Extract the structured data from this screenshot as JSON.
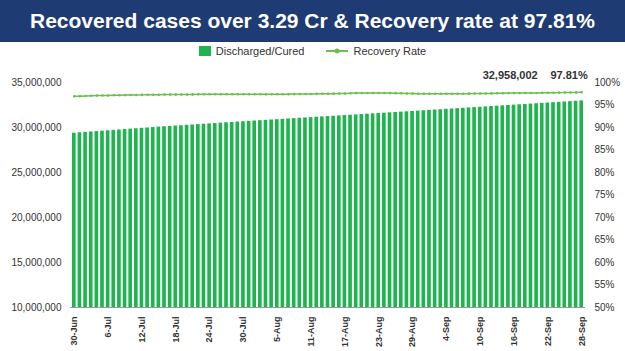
{
  "chart_data": {
    "type": "bar",
    "title": "Recovered cases over 3.29 Cr & Recovery rate at 97.81%",
    "categories": [
      "30-Jun",
      null,
      null,
      null,
      null,
      null,
      "6-Jul",
      null,
      null,
      null,
      null,
      null,
      "12-Jul",
      null,
      null,
      null,
      null,
      null,
      "18-Jul",
      null,
      null,
      null,
      null,
      null,
      "24-Jul",
      null,
      null,
      null,
      null,
      null,
      "30-Jul",
      null,
      null,
      null,
      null,
      null,
      "5-Aug",
      null,
      null,
      null,
      null,
      null,
      "11-Aug",
      null,
      null,
      null,
      null,
      null,
      "17-Aug",
      null,
      null,
      null,
      null,
      null,
      "23-Aug",
      null,
      null,
      null,
      null,
      null,
      "29-Aug",
      null,
      null,
      null,
      null,
      null,
      "4-Sep",
      null,
      null,
      null,
      null,
      null,
      "10-Sep",
      null,
      null,
      null,
      null,
      null,
      "16-Sep",
      null,
      null,
      null,
      null,
      null,
      "22-Sep",
      null,
      null,
      null,
      null,
      null,
      "28-Sep"
    ],
    "series": [
      {
        "name": "Discharged/Cured",
        "type": "bar",
        "color": "#1fb450",
        "values": [
          29366601,
          29411601,
          29456601,
          29501601,
          29546601,
          29591601,
          29636601,
          29681601,
          29726601,
          29771601,
          29816601,
          29861601,
          29906601,
          29951601,
          29996601,
          30041601,
          30081601,
          30121601,
          30161601,
          30201601,
          30241601,
          30281601,
          30321601,
          30361601,
          30401601,
          30441601,
          30481601,
          30521601,
          30561601,
          30601601,
          30641601,
          30681601,
          30719601,
          30757601,
          30795601,
          30833601,
          30871601,
          30909601,
          30947601,
          30985601,
          31023601,
          31061601,
          31099601,
          31137601,
          31175601,
          31213601,
          31251601,
          31289601,
          31327601,
          31365601,
          31403601,
          31441601,
          31479601,
          31517601,
          31555601,
          31593601,
          31631601,
          31669601,
          31707601,
          31745601,
          31783601,
          31821601,
          31859601,
          31898601,
          31937601,
          31976601,
          32015601,
          32054601,
          32093601,
          32132601,
          32171601,
          32210601,
          32249601,
          32288601,
          32327601,
          32366601,
          32405601,
          32444601,
          32483601,
          32522601,
          32561601,
          32600601,
          32639601,
          32678601,
          32717601,
          32756601,
          32795601,
          32834601,
          32873601,
          32912601,
          32958002
        ]
      },
      {
        "name": "Recovery Rate",
        "type": "line",
        "axis": "y2",
        "color": "#6cbf4a",
        "marker": "dot",
        "values": [
          96.92,
          96.97,
          97.01,
          97.06,
          97.09,
          97.11,
          97.12,
          97.17,
          97.18,
          97.2,
          97.22,
          97.22,
          97.25,
          97.28,
          97.28,
          97.28,
          97.31,
          97.31,
          97.31,
          97.33,
          97.35,
          97.36,
          97.37,
          97.37,
          97.38,
          97.39,
          97.39,
          97.39,
          97.39,
          97.39,
          97.4,
          97.4,
          97.39,
          97.38,
          97.37,
          97.38,
          97.39,
          97.4,
          97.4,
          97.42,
          97.43,
          97.45,
          97.46,
          97.48,
          97.49,
          97.51,
          97.52,
          97.54,
          97.57,
          97.6,
          97.64,
          97.66,
          97.67,
          97.68,
          97.68,
          97.67,
          97.65,
          97.63,
          97.6,
          97.57,
          97.53,
          97.51,
          97.48,
          97.48,
          97.49,
          97.49,
          97.49,
          97.48,
          97.49,
          97.51,
          97.52,
          97.54,
          97.55,
          97.57,
          97.58,
          97.6,
          97.62,
          97.64,
          97.65,
          97.65,
          97.66,
          97.67,
          97.68,
          97.7,
          97.71,
          97.73,
          97.75,
          97.77,
          97.78,
          97.8,
          97.81
        ]
      }
    ],
    "ylim": [
      10000000,
      35000000
    ],
    "yticks": [
      {
        "value": 10000000,
        "label": "10,000,000"
      },
      {
        "value": 15000000,
        "label": "15,000,000"
      },
      {
        "value": 20000000,
        "label": "20,000,000"
      },
      {
        "value": 25000000,
        "label": "25,000,000"
      },
      {
        "value": 30000000,
        "label": "30,000,000"
      },
      {
        "value": 35000000,
        "label": "35,000,000"
      }
    ],
    "y2lim": [
      50,
      100
    ],
    "y2ticks": [
      {
        "value": 50,
        "label": "50%"
      },
      {
        "value": 55,
        "label": "55%"
      },
      {
        "value": 60,
        "label": "60%"
      },
      {
        "value": 65,
        "label": "65%"
      },
      {
        "value": 70,
        "label": "70%"
      },
      {
        "value": 75,
        "label": "75%"
      },
      {
        "value": 80,
        "label": "80%"
      },
      {
        "value": 85,
        "label": "85%"
      },
      {
        "value": 90,
        "label": "90%"
      },
      {
        "value": 95,
        "label": "95%"
      },
      {
        "value": 100,
        "label": "100%"
      }
    ],
    "annotations": [
      {
        "text": "32,958,002",
        "x": "28-Sep"
      },
      {
        "text": "97.81%",
        "x": "28-Sep"
      }
    ],
    "legend": "top",
    "grid": false
  }
}
